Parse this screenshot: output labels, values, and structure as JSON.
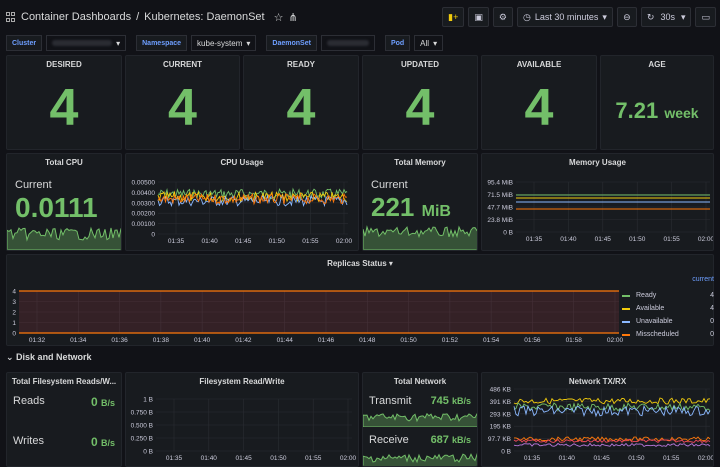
{
  "header": {
    "breadcrumb_parent": "Container Dashboards",
    "separator": "/",
    "title": "Kubernetes: DaemonSet",
    "time_range": "Last 30 minutes",
    "refresh": "30s"
  },
  "variables": {
    "cluster_label": "Cluster",
    "namespace_label": "Namespace",
    "namespace_value": "kube-system",
    "daemonset_label": "DaemonSet",
    "pod_label": "Pod",
    "pod_value": "All"
  },
  "stats": {
    "desired": {
      "title": "DESIRED",
      "value": "4"
    },
    "current": {
      "title": "CURRENT",
      "value": "4"
    },
    "ready": {
      "title": "READY",
      "value": "4"
    },
    "updated": {
      "title": "UPDATED",
      "value": "4"
    },
    "available": {
      "title": "AVAILABLE",
      "value": "4"
    },
    "age": {
      "title": "AGE",
      "value": "7.21",
      "unit": "week"
    }
  },
  "total_cpu": {
    "title": "Total CPU",
    "label": "Current",
    "value": "0.0111"
  },
  "total_memory": {
    "title": "Total Memory",
    "label": "Current",
    "value": "221",
    "unit": "MiB"
  },
  "cpu_usage": {
    "title": "CPU Usage",
    "y_ticks": [
      "0.00500",
      "0.00400",
      "0.00300",
      "0.00200",
      "0.00100",
      "0"
    ],
    "x_ticks": [
      "01:35",
      "01:40",
      "01:45",
      "01:50",
      "01:55",
      "02:00"
    ]
  },
  "memory_usage": {
    "title": "Memory Usage",
    "y_ticks": [
      "95.4 MiB",
      "71.5 MiB",
      "47.7 MiB",
      "23.8 MiB",
      "0 B"
    ],
    "x_ticks": [
      "01:35",
      "01:40",
      "01:45",
      "01:50",
      "01:55",
      "02:00"
    ]
  },
  "replicas": {
    "title": "Replicas Status",
    "y_ticks": [
      "4",
      "3",
      "2",
      "1",
      "0"
    ],
    "x_ticks": [
      "01:32",
      "01:34",
      "01:36",
      "01:38",
      "01:40",
      "01:42",
      "01:44",
      "01:46",
      "01:48",
      "01:50",
      "01:52",
      "01:54",
      "01:56",
      "01:58",
      "02:00"
    ],
    "legend_header": "current",
    "legend": [
      {
        "name": "Ready",
        "value": "4",
        "color": "#73bf69"
      },
      {
        "name": "Available",
        "value": "4",
        "color": "#f2cc0c"
      },
      {
        "name": "Unavailable",
        "value": "0",
        "color": "#8ab8ff"
      },
      {
        "name": "Misscheduled",
        "value": "0",
        "color": "#ff780a"
      }
    ]
  },
  "section": {
    "title": "Disk and Network"
  },
  "fs_total": {
    "title": "Total Filesystem Reads/W...",
    "reads_label": "Reads",
    "reads_value": "0",
    "reads_unit": "B/s",
    "writes_label": "Writes",
    "writes_value": "0",
    "writes_unit": "B/s"
  },
  "fs_rw": {
    "title": "Filesystem Read/Write",
    "y_ticks": [
      "1 B",
      "0.750 B",
      "0.500 B",
      "0.250 B",
      "0 B"
    ],
    "x_ticks": [
      "01:35",
      "01:40",
      "01:45",
      "01:50",
      "01:55",
      "02:00"
    ]
  },
  "total_network": {
    "title": "Total Network",
    "transmit_label": "Transmit",
    "transmit_value": "745",
    "transmit_unit": "kB/s",
    "receive_label": "Receive",
    "receive_value": "687",
    "receive_unit": "kB/s"
  },
  "network_txrx": {
    "title": "Network TX/RX",
    "y_ticks": [
      "486 KB",
      "391 KB",
      "293 KB",
      "195 KB",
      "97.7 KB",
      "0 B"
    ],
    "x_ticks": [
      "01:35",
      "01:40",
      "01:45",
      "01:50",
      "01:55",
      "02:00"
    ]
  },
  "colors": {
    "green": "#73bf69",
    "yellow": "#f2cc0c",
    "blue": "#8ab8ff",
    "orange": "#ff780a",
    "red": "#f2495c",
    "bg": "#111217",
    "panel": "#181b1f"
  }
}
